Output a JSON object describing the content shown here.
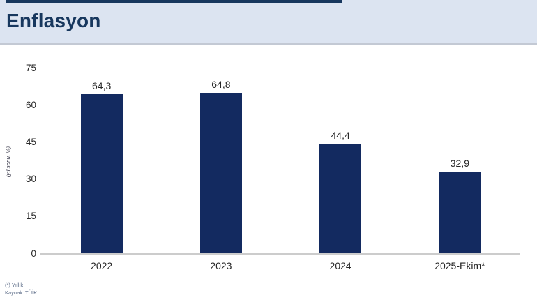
{
  "header": {
    "title": "Enflasyon"
  },
  "chart_data": {
    "type": "bar",
    "title": "Enflasyon",
    "categories": [
      "2022",
      "2023",
      "2024",
      "2025-Ekim*"
    ],
    "values": [
      64.3,
      64.8,
      44.4,
      32.9
    ],
    "value_labels": [
      "64,3",
      "64,8",
      "44,4",
      "32,9"
    ],
    "ylabel": "(yıl sonu, %)",
    "yticks": [
      0,
      15,
      30,
      45,
      60,
      75
    ],
    "ylim": [
      0,
      75
    ],
    "grid": false,
    "legend": false,
    "bar_color": "#132a60"
  },
  "footnotes": {
    "line1": "(*) Yıllık",
    "line2": "Kaynak: TÜİK"
  },
  "colors": {
    "accent": "#17375e",
    "header_bg": "#dce4f1",
    "bar": "#132a60",
    "axis_line": "#cccccc",
    "text": "#262626",
    "footnote": "#5b6b87"
  }
}
